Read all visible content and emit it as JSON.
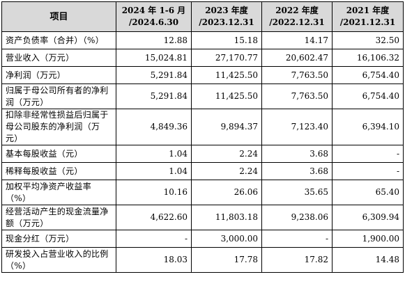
{
  "table": {
    "headers": [
      {
        "lines": [
          "项目"
        ]
      },
      {
        "lines": [
          "2024 年 1-6 月",
          "/2024.6.30"
        ]
      },
      {
        "lines": [
          "2023 年度",
          "/2023.12.31"
        ]
      },
      {
        "lines": [
          "2022 年度",
          "/2022.12.31"
        ]
      },
      {
        "lines": [
          "2021 年度",
          "/2021.12.31"
        ]
      }
    ],
    "rows": [
      {
        "label": "资产负债率（合并）（%）",
        "values": [
          "12.88",
          "15.18",
          "14.17",
          "32.50"
        ]
      },
      {
        "label": "营业收入（万元）",
        "values": [
          "15,024.81",
          "27,170.77",
          "20,602.47",
          "16,106.32"
        ]
      },
      {
        "label": "净利润（万元）",
        "values": [
          "5,291.84",
          "11,425.50",
          "7,763.50",
          "6,754.40"
        ]
      },
      {
        "label": "归属于母公司所有者的净利润（万元）",
        "values": [
          "5,291.84",
          "11,425.50",
          "7,763.50",
          "6,754.40"
        ]
      },
      {
        "label": "扣除非经常性损益后归属于母公司股东的净利润（万元）",
        "values": [
          "4,849.36",
          "9,894.37",
          "7,123.40",
          "6,394.10"
        ]
      },
      {
        "label": "基本每股收益（元）",
        "values": [
          "1.04",
          "2.24",
          "3.68",
          "-"
        ]
      },
      {
        "label": "稀释每股收益（元）",
        "values": [
          "1.04",
          "2.24",
          "3.68",
          "-"
        ]
      },
      {
        "label": "加权平均净资产收益率（%）",
        "values": [
          "10.16",
          "26.06",
          "35.65",
          "65.40"
        ]
      },
      {
        "label": "经营活动产生的现金流量净额（万元）",
        "values": [
          "4,622.60",
          "11,803.18",
          "9,238.06",
          "6,309.94"
        ]
      },
      {
        "label": "现金分红（万元）",
        "values": [
          "-",
          "3,000.00",
          "-",
          "1,900.00"
        ]
      },
      {
        "label": "研发投入占营业收入的比例（%）",
        "values": [
          "18.03",
          "17.78",
          "17.82",
          "14.48"
        ]
      }
    ]
  }
}
